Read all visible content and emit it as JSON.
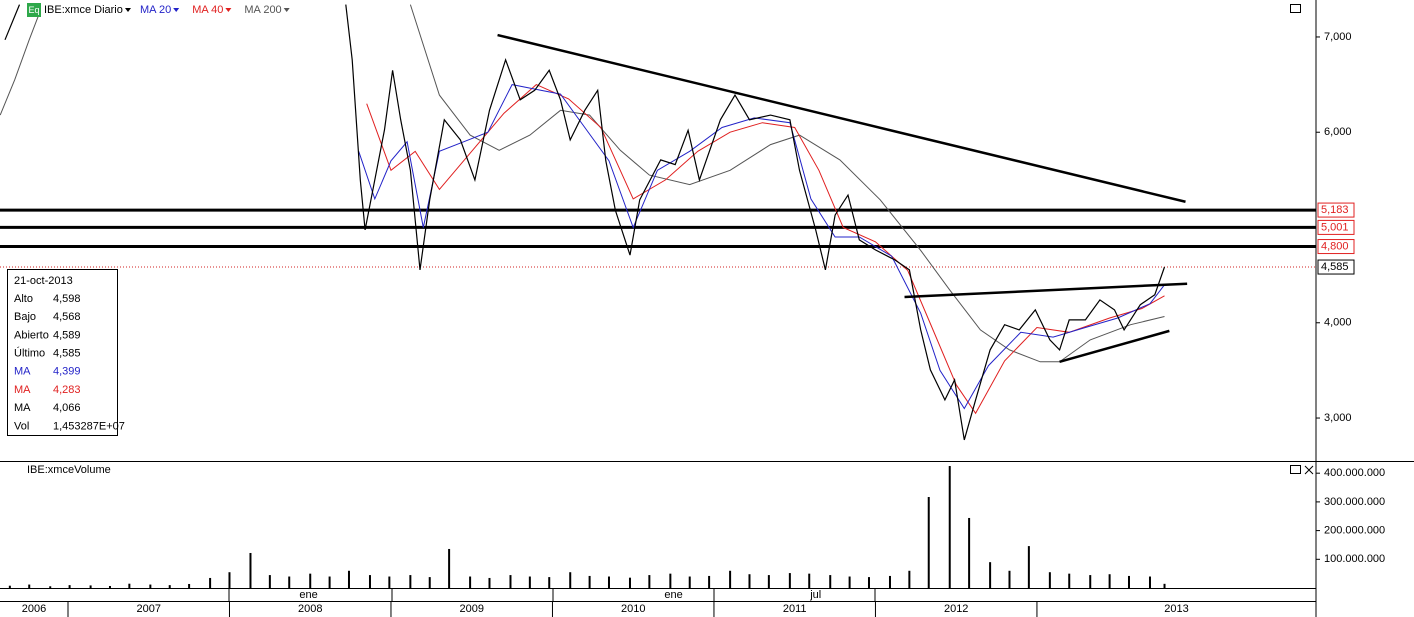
{
  "header": {
    "symbol": "IBE:xmce Diario",
    "badge": "Eq"
  },
  "chart_data": [
    {
      "type": "line",
      "xlim": [
        2006.579,
        2014.728
      ],
      "ylim": [
        2549,
        7388
      ],
      "yticks": [
        {
          "value": 3000,
          "label": "3,000"
        },
        {
          "value": 4000,
          "label": "4,000"
        },
        {
          "value": 6000,
          "label": "6,000"
        },
        {
          "value": 7000,
          "label": "7,000"
        }
      ],
      "series": [
        {
          "name": "IBE:xmce Diario",
          "color": "#000000",
          "x": [
            2006.61,
            2006.7,
            null,
            2008.72,
            2008.76,
            2008.81,
            2008.84,
            2008.9,
            2008.96,
            2009.01,
            2009.06,
            2009.12,
            2009.18,
            2009.24,
            2009.33,
            2009.43,
            2009.52,
            2009.61,
            2009.71,
            2009.8,
            2009.89,
            2009.98,
            2010.05,
            2010.11,
            2010.2,
            2010.28,
            2010.33,
            2010.39,
            2010.48,
            2010.54,
            2010.67,
            2010.76,
            2010.84,
            2010.91,
            2011.04,
            2011.13,
            2011.22,
            2011.35,
            2011.47,
            2011.53,
            2011.63,
            2011.69,
            2011.75,
            2011.83,
            2011.9,
            2012.0,
            2012.12,
            2012.21,
            2012.28,
            2012.34,
            2012.43,
            2012.49,
            2012.55,
            2012.62,
            2012.71,
            2012.8,
            2012.89,
            2012.99,
            2013.08,
            2013.14,
            2013.2,
            2013.3,
            2013.39,
            2013.48,
            2013.54,
            2013.64,
            2013.73,
            2013.79
          ],
          "values": [
            6970,
            7340,
            null,
            7340,
            6760,
            5500,
            4975,
            5500,
            6025,
            6650,
            6130,
            5600,
            4555,
            5290,
            6130,
            5920,
            5500,
            6230,
            6760,
            6340,
            6440,
            6650,
            6340,
            5920,
            6230,
            6440,
            5700,
            5180,
            4710,
            5290,
            5710,
            5660,
            6020,
            5500,
            6130,
            6390,
            6130,
            6180,
            6130,
            5600,
            4975,
            4555,
            5130,
            5340,
            4870,
            4765,
            4660,
            4555,
            3925,
            3505,
            3190,
            3400,
            2770,
            3190,
            3715,
            3980,
            3925,
            4135,
            3820,
            3715,
            4030,
            4030,
            4240,
            4135,
            3925,
            4190,
            4295,
            4585
          ]
        },
        {
          "name": "MA 20",
          "color": "#2323c8",
          "x": [
            2008.8,
            2008.9,
            2009.0,
            2009.1,
            2009.2,
            2009.3,
            2009.45,
            2009.6,
            2009.75,
            2009.9,
            2010.05,
            2010.2,
            2010.35,
            2010.5,
            2010.65,
            2010.85,
            2011.05,
            2011.25,
            2011.47,
            2011.6,
            2011.75,
            2011.9,
            2012.1,
            2012.28,
            2012.4,
            2012.55,
            2012.7,
            2012.9,
            2013.1,
            2013.3,
            2013.5,
            2013.7,
            2013.79
          ],
          "values": [
            5800,
            5300,
            5700,
            5900,
            5000,
            5800,
            5900,
            6000,
            6500,
            6450,
            6400,
            6050,
            5700,
            5000,
            5600,
            5800,
            6050,
            6150,
            6100,
            5300,
            4900,
            4900,
            4700,
            4100,
            3500,
            3100,
            3550,
            3900,
            3850,
            3950,
            4050,
            4200,
            4399
          ]
        },
        {
          "name": "MA 40",
          "color": "#e02020",
          "x": [
            2008.85,
            2009.0,
            2009.15,
            2009.3,
            2009.5,
            2009.7,
            2009.9,
            2010.1,
            2010.3,
            2010.5,
            2010.7,
            2010.9,
            2011.1,
            2011.3,
            2011.5,
            2011.65,
            2011.8,
            2012.0,
            2012.2,
            2012.35,
            2012.5,
            2012.62,
            2012.8,
            2013.0,
            2013.2,
            2013.45,
            2013.65,
            2013.79
          ],
          "values": [
            6300,
            5600,
            5800,
            5400,
            5800,
            6200,
            6500,
            6350,
            6050,
            5300,
            5500,
            5800,
            6000,
            6100,
            6050,
            5600,
            5000,
            4850,
            4550,
            3950,
            3350,
            3050,
            3600,
            3950,
            3900,
            4050,
            4150,
            4283
          ]
        },
        {
          "name": "MA 200",
          "color": "#555555",
          "x": [
            2006.58,
            2006.67,
            2006.76,
            2006.83,
            null,
            2009.12,
            2009.3,
            2009.49,
            2009.67,
            2009.86,
            2010.05,
            2010.23,
            2010.42,
            2010.6,
            2010.85,
            2011.1,
            2011.35,
            2011.53,
            2011.78,
            2012.03,
            2012.28,
            2012.46,
            2012.65,
            2012.83,
            2013.02,
            2013.14,
            2013.33,
            2013.58,
            2013.79
          ],
          "values": [
            6180,
            6550,
            6970,
            7280,
            null,
            7340,
            6390,
            5970,
            5810,
            5970,
            6230,
            6180,
            5810,
            5550,
            5450,
            5600,
            5870,
            5970,
            5710,
            5290,
            4760,
            4345,
            3925,
            3715,
            3590,
            3590,
            3820,
            3980,
            4066
          ]
        }
      ],
      "levels": [
        {
          "value": 5183,
          "label": "5,183"
        },
        {
          "value": 5001,
          "label": "5,001"
        },
        {
          "value": 4800,
          "label": "4,800"
        }
      ],
      "last_price": {
        "value": 4585,
        "label": "4,585"
      },
      "trendlines": [
        {
          "x": [
            2009.66,
            2013.92
          ],
          "values": [
            7020,
            5270
          ]
        },
        {
          "x": [
            2012.18,
            2013.93
          ],
          "values": [
            4270,
            4410
          ]
        },
        {
          "x": [
            2013.14,
            2013.82
          ],
          "values": [
            3590,
            3915
          ]
        }
      ]
    },
    {
      "type": "bar",
      "title": "IBE:xmceVolume",
      "xlim": [
        2006.579,
        2014.728
      ],
      "ylim": [
        0,
        439000000
      ],
      "yticks": [
        {
          "value": 100000000,
          "label": "100.000.000"
        },
        {
          "value": 200000000,
          "label": "200.000.000"
        },
        {
          "value": 300000000,
          "label": "300.000.000"
        },
        {
          "value": 400000000,
          "label": "400.000.000"
        }
      ],
      "color": "#000000",
      "x": [
        2006.64,
        2006.76,
        2006.89,
        2007.01,
        2007.14,
        2007.26,
        2007.38,
        2007.51,
        2007.63,
        2007.75,
        2007.88,
        2008.0,
        2008.13,
        2008.25,
        2008.37,
        2008.5,
        2008.62,
        2008.74,
        2008.87,
        2008.99,
        2009.12,
        2009.24,
        2009.36,
        2009.49,
        2009.61,
        2009.74,
        2009.86,
        2009.98,
        2010.11,
        2010.23,
        2010.35,
        2010.48,
        2010.6,
        2010.73,
        2010.85,
        2010.97,
        2011.1,
        2011.22,
        2011.34,
        2011.47,
        2011.59,
        2011.72,
        2011.84,
        2011.96,
        2012.09,
        2012.21,
        2012.33,
        2012.46,
        2012.58,
        2012.71,
        2012.83,
        2012.95,
        2013.08,
        2013.2,
        2013.33,
        2013.45,
        2013.57,
        2013.7,
        2013.79
      ],
      "values": [
        8000000,
        12000000,
        6000000,
        10000000,
        9000000,
        7000000,
        15000000,
        12000000,
        10000000,
        14000000,
        35000000,
        55000000,
        122000000,
        45000000,
        40000000,
        50000000,
        40000000,
        60000000,
        45000000,
        40000000,
        45000000,
        38000000,
        136000000,
        40000000,
        35000000,
        45000000,
        40000000,
        38000000,
        55000000,
        42000000,
        40000000,
        36000000,
        45000000,
        50000000,
        40000000,
        42000000,
        60000000,
        48000000,
        45000000,
        52000000,
        50000000,
        45000000,
        40000000,
        38000000,
        42000000,
        60000000,
        317000000,
        425000000,
        244000000,
        90000000,
        60000000,
        146000000,
        55000000,
        50000000,
        45000000,
        48000000,
        42000000,
        40000000,
        14532870
      ]
    }
  ],
  "time_axis": {
    "xticks": [
      2007,
      2008,
      2009,
      2010,
      2011,
      2012,
      2013
    ],
    "year_labels": [
      "2006",
      "2007",
      "2008",
      "2009",
      "2010",
      "2011",
      "2012",
      "2013"
    ],
    "month_labels": [
      {
        "value": 2008.49,
        "label": "ene"
      },
      {
        "value": 2010.75,
        "label": "ene"
      },
      {
        "value": 2011.63,
        "label": "jul"
      }
    ]
  },
  "info_panel": {
    "date": "21-oct-2013",
    "rows": [
      {
        "label": "Alto",
        "value": "4,598",
        "color": "#000000"
      },
      {
        "label": "Bajo",
        "value": "4,568",
        "color": "#000000"
      },
      {
        "label": "Abierto",
        "value": "4,589",
        "color": "#000000"
      },
      {
        "label": "Último",
        "value": "4,585",
        "color": "#000000"
      },
      {
        "label": "MA",
        "value": "4,399",
        "color": "#2323c8"
      },
      {
        "label": "MA",
        "value": "4,283",
        "color": "#e02020"
      },
      {
        "label": "MA",
        "value": "4,066",
        "color": "#000000"
      },
      {
        "label": "Vol",
        "value": "1,453287E+07",
        "color": "#000000"
      }
    ]
  }
}
